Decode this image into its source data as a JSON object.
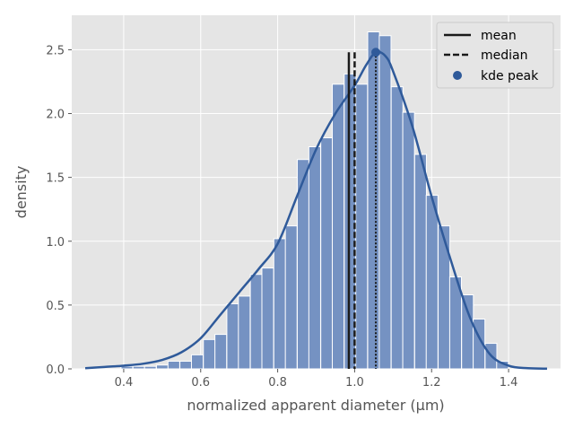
{
  "chart_data": {
    "type": "bar",
    "xlabel": "normalized apparent diameter (μm)",
    "ylabel": "density",
    "xlim": [
      0.265,
      1.535
    ],
    "ylim": [
      0,
      2.77
    ],
    "xticks": [
      0.4,
      0.6,
      0.8,
      1.0,
      1.2,
      1.4
    ],
    "xtick_labels": [
      "0.4",
      "0.6",
      "0.8",
      "1.0",
      "1.2",
      "1.4"
    ],
    "yticks": [
      0.0,
      0.5,
      1.0,
      1.5,
      2.0,
      2.5
    ],
    "ytick_labels": [
      "0.0",
      "0.5",
      "1.0",
      "1.5",
      "2.0",
      "2.5"
    ],
    "grid": true,
    "legend_position": "top-right",
    "colors": {
      "bars": "#7592c2",
      "bar_edge": "#ffffff",
      "kde": "#2f5a9a",
      "plot_background": "#e5e5e5",
      "grid": "#ffffff",
      "mean": "#1a1a1a",
      "median": "#1a1a1a",
      "peak": "#2f5a9a"
    },
    "histogram": {
      "bin_width": 0.0305,
      "bin_left_edges": [
        0.393,
        0.424,
        0.454,
        0.485,
        0.515,
        0.546,
        0.576,
        0.607,
        0.637,
        0.668,
        0.698,
        0.729,
        0.759,
        0.79,
        0.82,
        0.851,
        0.881,
        0.912,
        0.942,
        0.973,
        1.003,
        1.034,
        1.064,
        1.095,
        1.125,
        1.156,
        1.186,
        1.217,
        1.247,
        1.278,
        1.308,
        1.339,
        1.369
      ],
      "densities": [
        0.02,
        0.02,
        0.02,
        0.03,
        0.06,
        0.06,
        0.11,
        0.23,
        0.27,
        0.51,
        0.57,
        0.74,
        0.79,
        1.02,
        1.12,
        1.64,
        1.74,
        1.81,
        2.23,
        2.31,
        2.23,
        2.64,
        2.61,
        2.21,
        2.01,
        1.68,
        1.36,
        1.12,
        0.72,
        0.58,
        0.39,
        0.2,
        0.06
      ]
    },
    "kde": {
      "x": [
        0.3,
        0.35,
        0.4,
        0.45,
        0.5,
        0.55,
        0.6,
        0.65,
        0.7,
        0.75,
        0.8,
        0.85,
        0.9,
        0.95,
        1.0,
        1.03,
        1.055,
        1.08,
        1.1,
        1.15,
        1.2,
        1.25,
        1.3,
        1.35,
        1.4,
        1.45,
        1.5
      ],
      "y": [
        0.005,
        0.015,
        0.025,
        0.04,
        0.07,
        0.13,
        0.24,
        0.42,
        0.6,
        0.78,
        0.98,
        1.35,
        1.72,
        2.0,
        2.22,
        2.38,
        2.48,
        2.45,
        2.33,
        1.9,
        1.35,
        0.85,
        0.4,
        0.12,
        0.025,
        0.005,
        0.002
      ]
    },
    "stats": {
      "mean": 0.985,
      "median": 1.0,
      "kde_peak_x": 1.055,
      "kde_peak_y": 2.48,
      "vline_top": 2.48
    },
    "legend": [
      {
        "label": "mean",
        "style": "solid"
      },
      {
        "label": "median",
        "style": "dashed"
      },
      {
        "label": "kde peak",
        "style": "marker"
      }
    ]
  }
}
